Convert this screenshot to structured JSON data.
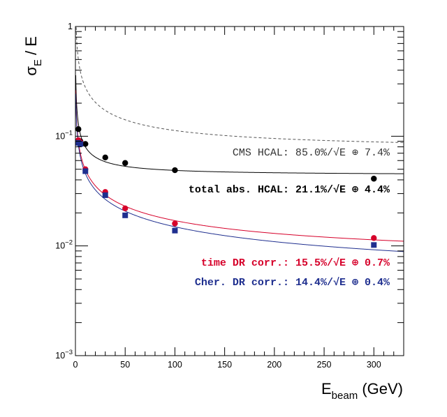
{
  "chart_data": {
    "type": "scatter",
    "title": "",
    "xlabel": {
      "main": "E",
      "sub": "beam",
      "suffix": " (GeV)"
    },
    "ylabel": {
      "main": "σ",
      "sub": "E",
      "suffix": " / E"
    },
    "xlim": [
      0,
      330
    ],
    "ylim": [
      0.001,
      1
    ],
    "yscale": "log",
    "grid": false,
    "x_ticks": [
      "0",
      "50",
      "100",
      "150",
      "200",
      "250",
      "300"
    ],
    "y_ticks": [
      {
        "value": 1,
        "base": "1",
        "exp": ""
      },
      {
        "value": 0.1,
        "base": "10",
        "exp": "−1"
      },
      {
        "value": 0.01,
        "base": "10",
        "exp": "−2"
      },
      {
        "value": 0.001,
        "base": "10",
        "exp": "−3"
      }
    ],
    "series": [
      {
        "name": "CMS HCAL",
        "color": "#555555",
        "style": "dashed-fit-only",
        "fit": {
          "stochastic": 0.85,
          "constant": 0.074
        },
        "points": []
      },
      {
        "name": "total abs. HCAL",
        "color": "#000000",
        "marker": "circle",
        "fit": {
          "stochastic": 0.211,
          "constant": 0.044
        },
        "points": [
          [
            3,
            0.116
          ],
          [
            5,
            0.09
          ],
          [
            10,
            0.085
          ],
          [
            30,
            0.064
          ],
          [
            50,
            0.057
          ],
          [
            100,
            0.049
          ],
          [
            300,
            0.041
          ]
        ]
      },
      {
        "name": "time DR corr.",
        "color": "#d6002a",
        "marker": "circle",
        "fit": {
          "stochastic": 0.155,
          "constant": 0.007
        },
        "points": [
          [
            3,
            0.092
          ],
          [
            5,
            0.088
          ],
          [
            10,
            0.05
          ],
          [
            30,
            0.031
          ],
          [
            50,
            0.022
          ],
          [
            100,
            0.016
          ],
          [
            300,
            0.0118
          ]
        ]
      },
      {
        "name": "Cher. DR corr.",
        "color": "#1f2f8f",
        "marker": "square",
        "fit": {
          "stochastic": 0.144,
          "constant": 0.004
        },
        "points": [
          [
            3,
            0.087
          ],
          [
            5,
            0.085
          ],
          [
            10,
            0.048
          ],
          [
            30,
            0.029
          ],
          [
            50,
            0.019
          ],
          [
            100,
            0.0138
          ],
          [
            300,
            0.0102
          ]
        ]
      }
    ],
    "legend": [
      {
        "text": "CMS HCAL: 85.0%/√E ⊕ 7.4%",
        "color": "#333333",
        "bold": false
      },
      {
        "text": "total abs. HCAL: 21.1%/√E ⊕ 4.4%",
        "color": "#000000",
        "bold": true
      },
      {
        "text": "time DR corr.: 15.5%/√E ⊕ 0.7%",
        "color": "#d6002a",
        "bold": true
      },
      {
        "text": "Cher. DR corr.: 14.4%/√E ⊕ 0.4%",
        "color": "#1f2f8f",
        "bold": true
      }
    ]
  }
}
